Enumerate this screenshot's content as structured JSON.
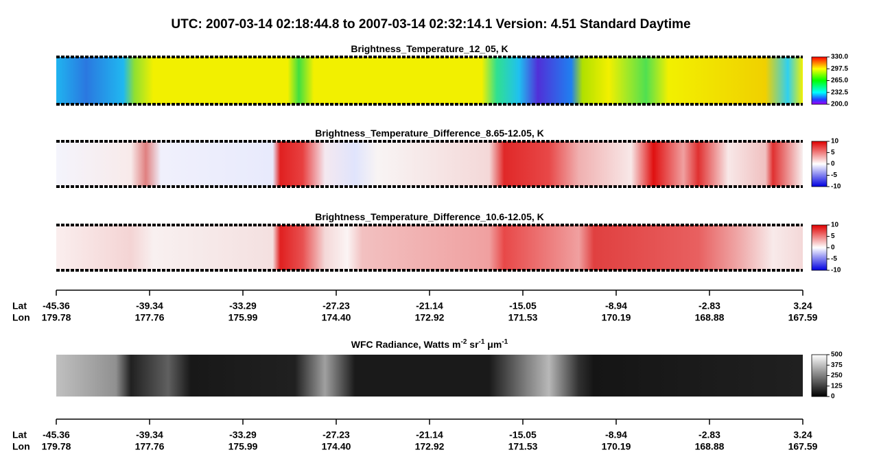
{
  "header": {
    "title": "UTC:  2007-03-14   02:18:44.8  to  2007-03-14   02:32:14.1    Version: 4.51  Standard Daytime"
  },
  "panels": [
    {
      "title_parts": [
        "Brightness_Temperature_12_05, K"
      ],
      "colorbar": [
        "330.0",
        "297.5",
        "265.0",
        "232.5",
        "200.0"
      ]
    },
    {
      "title_parts": [
        "Brightness_Temperature_Difference_8.65-12.05, K"
      ],
      "colorbar": [
        "10",
        "5",
        "0",
        "-5",
        "-10"
      ]
    },
    {
      "title_parts": [
        "Brightness_Temperature_Difference_10.6-12.05, K"
      ],
      "colorbar": [
        "10",
        "5",
        "0",
        "-5",
        "-10"
      ]
    },
    {
      "title_parts": [
        "WFC Radiance, Watts m",
        "-2",
        " sr",
        "-1",
        " μm",
        "-1"
      ],
      "colorbar": [
        "500",
        "375",
        "250",
        "125",
        "0"
      ]
    }
  ],
  "axes": [
    {
      "lat_label": "Lat",
      "lon_label": "Lon",
      "lat": [
        "-45.36",
        "-39.34",
        "-33.29",
        "-27.23",
        "-21.14",
        "-15.05",
        "-8.94",
        "-2.83",
        "3.24"
      ],
      "lon": [
        "179.78",
        "177.76",
        "175.99",
        "174.40",
        "172.92",
        "171.53",
        "170.19",
        "168.88",
        "167.59"
      ]
    },
    {
      "lat_label": "Lat",
      "lon_label": "Lon",
      "lat": [
        "-45.36",
        "-39.34",
        "-33.29",
        "-27.23",
        "-21.14",
        "-15.05",
        "-8.94",
        "-2.83",
        "3.24"
      ],
      "lon": [
        "179.78",
        "177.76",
        "175.99",
        "174.40",
        "172.92",
        "171.53",
        "170.19",
        "168.88",
        "167.59"
      ]
    }
  ]
}
